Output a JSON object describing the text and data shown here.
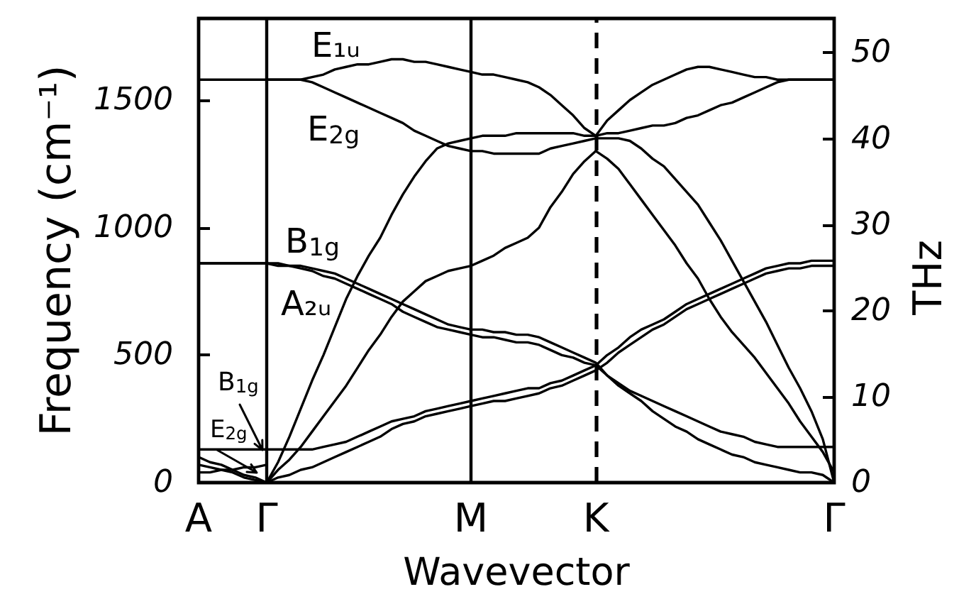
{
  "chart_data": {
    "type": "line",
    "xlabel": "Wavevector",
    "ylabel": "Frequency (cm⁻¹)",
    "y2label": "THz",
    "categories": [
      "A",
      null,
      null,
      null,
      null,
      null,
      "Γ",
      null,
      null,
      null,
      null,
      null,
      null,
      null,
      null,
      null,
      null,
      null,
      null,
      null,
      null,
      null,
      null,
      null,
      "M",
      null,
      null,
      null,
      null,
      null,
      null,
      null,
      null,
      null,
      null,
      "K",
      null,
      null,
      null,
      null,
      null,
      null,
      null,
      null,
      null,
      null,
      null,
      null,
      null,
      null,
      null,
      null,
      null,
      null,
      null,
      null,
      "Γ"
    ],
    "ylim": [
      0,
      1820
    ],
    "yticks": [
      0,
      500,
      1000,
      1500
    ],
    "y2lim": [
      0,
      54
    ],
    "y2ticks": [
      0,
      10,
      20,
      30,
      40,
      50
    ],
    "marker": "none",
    "line_style": "solid",
    "ref_lines": [
      {
        "axis": "x",
        "value": "Γ",
        "color": "#000000",
        "line_style": "solid"
      },
      {
        "axis": "x",
        "value": "M",
        "color": "#000000",
        "line_style": "solid"
      },
      {
        "axis": "x",
        "value": "K",
        "color": "#000000",
        "line_style": "dashed"
      }
    ],
    "annotations": [
      "E₁ᵤ",
      "E$_{2g}$",
      "B$_{1g}$",
      "A₂ᵤ",
      "B$_{1g}$",
      "E$_{2g}$"
    ],
    "series": [
      {
        "color": "#000000",
        "values": [
          1580,
          1580,
          1580,
          1580,
          1580,
          1580,
          1580,
          1580,
          1580,
          1580,
          1590,
          1600,
          1620,
          1630,
          1640,
          1640,
          1650,
          1660,
          1660,
          1650,
          1650,
          1640,
          1630,
          1620,
          1610,
          1600,
          1600,
          1590,
          1580,
          1570,
          1550,
          1520,
          1480,
          1440,
          1390,
          1360,
          1420,
          1460,
          1500,
          1530,
          1560,
          1580,
          1600,
          1620,
          1630,
          1630,
          1620,
          1610,
          1600,
          1590,
          1590,
          1580,
          1580,
          1580,
          1580,
          1580,
          1580
        ]
      },
      {
        "color": "#000000",
        "values": [
          null,
          null,
          null,
          null,
          null,
          null,
          1580,
          1580,
          1580,
          1580,
          1570,
          1550,
          1530,
          1510,
          1490,
          1470,
          1450,
          1430,
          1410,
          1380,
          1360,
          1340,
          1320,
          1310,
          1300,
          1300,
          1290,
          1290,
          1290,
          1290,
          1290,
          1310,
          1320,
          1330,
          1340,
          1350,
          1350,
          1350,
          1340,
          1310,
          1270,
          1240,
          1190,
          1140,
          1090,
          1020,
          950,
          870,
          790,
          710,
          630,
          540,
          450,
          370,
          280,
          170,
          0
        ]
      },
      {
        "color": "#000000",
        "values": [
          100,
          80,
          70,
          50,
          30,
          20,
          0,
          80,
          180,
          290,
          400,
          500,
          610,
          720,
          810,
          890,
          960,
          1050,
          1130,
          1200,
          1260,
          1310,
          1330,
          1340,
          1350,
          1360,
          1360,
          1360,
          1370,
          1370,
          1370,
          1370,
          1370,
          1370,
          1360,
          1360,
          1370,
          1370,
          1380,
          1390,
          1400,
          1400,
          1410,
          1430,
          1440,
          1460,
          1480,
          1490,
          1510,
          1530,
          1550,
          1570,
          1580,
          1580,
          1580,
          1580,
          1580
        ]
      },
      {
        "color": "#000000",
        "values": [
          70,
          60,
          50,
          40,
          20,
          10,
          0,
          50,
          90,
          140,
          200,
          260,
          320,
          380,
          450,
          520,
          580,
          650,
          710,
          750,
          790,
          810,
          830,
          840,
          850,
          870,
          890,
          920,
          940,
          960,
          1000,
          1080,
          1140,
          1210,
          1260,
          1300,
          1270,
          1230,
          1170,
          1110,
          1050,
          990,
          930,
          860,
          800,
          720,
          650,
          590,
          540,
          490,
          430,
          370,
          310,
          240,
          180,
          120,
          40
        ]
      },
      {
        "color": "#000000",
        "values": [
          860,
          860,
          860,
          860,
          860,
          860,
          860,
          860,
          850,
          850,
          840,
          830,
          820,
          800,
          780,
          760,
          740,
          720,
          700,
          680,
          660,
          640,
          620,
          610,
          600,
          600,
          590,
          590,
          580,
          580,
          570,
          550,
          530,
          510,
          490,
          470,
          420,
          390,
          360,
          340,
          320,
          300,
          280,
          260,
          240,
          220,
          200,
          190,
          180,
          160,
          150,
          140,
          140,
          140,
          140,
          140,
          140
        ]
      },
      {
        "color": "#000000",
        "values": [
          860,
          860,
          860,
          860,
          860,
          860,
          860,
          850,
          850,
          840,
          830,
          810,
          800,
          780,
          760,
          740,
          720,
          700,
          670,
          650,
          630,
          610,
          600,
          590,
          580,
          570,
          570,
          560,
          550,
          550,
          540,
          520,
          500,
          490,
          470,
          460,
          420,
          380,
          350,
          320,
          280,
          250,
          220,
          200,
          170,
          150,
          130,
          110,
          100,
          80,
          70,
          60,
          50,
          40,
          40,
          30,
          0
        ]
      },
      {
        "color": "#000000",
        "values": [
          130,
          130,
          130,
          130,
          130,
          130,
          130,
          130,
          130,
          130,
          130,
          140,
          150,
          160,
          180,
          200,
          220,
          240,
          250,
          260,
          280,
          290,
          300,
          310,
          320,
          330,
          340,
          350,
          360,
          370,
          370,
          390,
          400,
          420,
          440,
          460,
          500,
          530,
          570,
          600,
          620,
          640,
          670,
          700,
          720,
          740,
          760,
          780,
          800,
          820,
          840,
          850,
          860,
          860,
          870,
          870,
          870
        ]
      },
      {
        "color": "#000000",
        "values": [
          null,
          null,
          null,
          null,
          null,
          null,
          0,
          20,
          30,
          50,
          60,
          80,
          100,
          120,
          140,
          160,
          180,
          210,
          230,
          240,
          260,
          270,
          280,
          290,
          300,
          310,
          320,
          320,
          330,
          340,
          350,
          370,
          380,
          400,
          420,
          440,
          470,
          510,
          540,
          570,
          600,
          620,
          650,
          680,
          700,
          720,
          740,
          760,
          780,
          800,
          820,
          830,
          840,
          840,
          850,
          850,
          850
        ]
      },
      {
        "color": "#000000",
        "values": [
          40,
          40,
          50,
          50,
          60,
          60,
          70,
          null,
          null,
          null,
          null,
          null,
          null,
          null,
          null,
          null,
          null,
          null,
          null,
          null,
          null,
          null,
          null,
          null,
          null,
          null,
          null,
          null,
          null,
          null,
          null,
          null,
          null,
          null,
          null,
          null,
          null,
          null,
          null,
          null,
          null,
          null,
          null,
          null,
          null,
          null,
          null,
          null,
          null,
          null,
          null,
          null,
          null,
          null,
          null,
          null,
          null
        ]
      }
    ]
  }
}
